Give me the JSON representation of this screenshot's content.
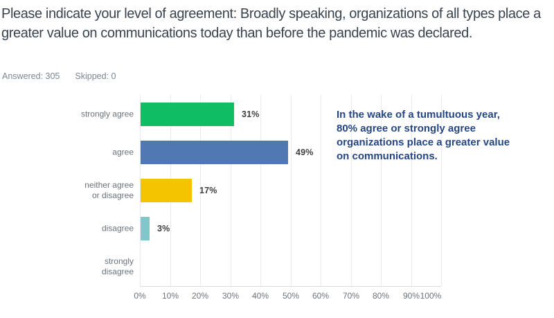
{
  "title": "Please indicate your level of agreement: Broadly speaking, organizations of all types place a greater value on communications today than before the pandemic was declared.",
  "stats": {
    "answered": "Answered: 305",
    "skipped": "Skipped: 0"
  },
  "chart_data": {
    "type": "bar",
    "orientation": "horizontal",
    "categories": [
      "strongly agree",
      "agree",
      "neither agree or disagree",
      "disagree",
      "strongly disagree"
    ],
    "category_display_lines": [
      [
        "strongly agree"
      ],
      [
        "agree"
      ],
      [
        "neither agree",
        "or disagree"
      ],
      [
        "disagree"
      ],
      [
        "strongly",
        "disagree"
      ]
    ],
    "values": [
      31,
      49,
      17,
      3,
      0
    ],
    "value_labels": [
      "31%",
      "49%",
      "17%",
      "3%",
      ""
    ],
    "bar_colors": [
      "#0fbe64",
      "#5079b3",
      "#f5c400",
      "#7ec8cb",
      ""
    ],
    "xlabel": "",
    "ylabel": "",
    "xlim": [
      0,
      100
    ],
    "x_ticks": [
      "0%",
      "10%",
      "20%",
      "30%",
      "40%",
      "50%",
      "60%",
      "70%",
      "80%",
      "90%",
      "100%"
    ],
    "grid": true,
    "legend": false
  },
  "annotation": {
    "color": "#264682",
    "lines": [
      "In the wake of a tumultuous year,",
      "80% agree or strongly agree",
      "organizations place a greater value",
      "on communications."
    ]
  }
}
